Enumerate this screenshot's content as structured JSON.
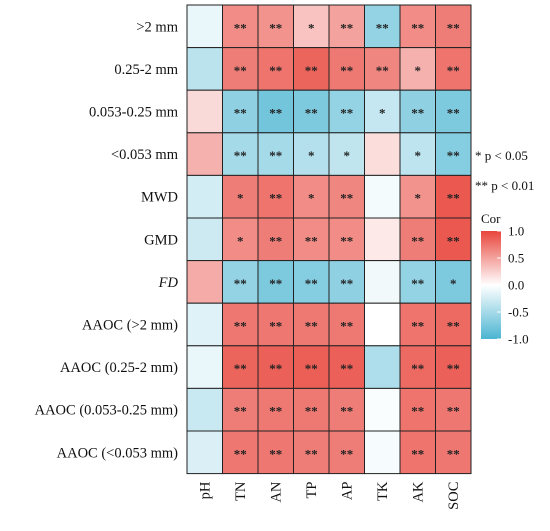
{
  "chart_data": {
    "type": "heatmap",
    "rows": [
      ">2 mm",
      "0.25-2 mm",
      "0.053-0.25 mm",
      "<0.053 mm",
      "MWD",
      "GMD",
      "FD",
      "AAOC (>2 mm)",
      "AAOC (0.25-2 mm)",
      "AAOC (0.053-0.25 mm)",
      "AAOC (<0.053 mm)"
    ],
    "row_italic": [
      false,
      false,
      false,
      false,
      false,
      false,
      true,
      false,
      false,
      false,
      false
    ],
    "columns": [
      "pH",
      "TN",
      "AN",
      "TP",
      "AP",
      "TK",
      "AK",
      "SOC"
    ],
    "values": [
      [
        -0.12,
        0.62,
        0.58,
        0.32,
        0.5,
        -0.6,
        0.62,
        0.7
      ],
      [
        -0.38,
        0.7,
        0.75,
        0.83,
        0.72,
        0.65,
        0.42,
        0.75
      ],
      [
        0.2,
        -0.62,
        -0.78,
        -0.72,
        -0.6,
        -0.32,
        -0.62,
        -0.72
      ],
      [
        0.42,
        -0.5,
        -0.5,
        -0.42,
        -0.35,
        0.18,
        -0.36,
        -0.68
      ],
      [
        -0.25,
        0.7,
        0.75,
        0.62,
        0.65,
        -0.06,
        0.58,
        0.9
      ],
      [
        -0.28,
        0.62,
        0.7,
        0.62,
        0.62,
        0.12,
        0.7,
        0.9
      ],
      [
        0.45,
        -0.6,
        -0.72,
        -0.68,
        -0.62,
        -0.08,
        -0.6,
        -0.72
      ],
      [
        -0.18,
        0.73,
        0.73,
        0.72,
        0.72,
        0.0,
        0.75,
        0.8
      ],
      [
        -0.12,
        0.83,
        0.85,
        0.86,
        0.85,
        -0.45,
        0.8,
        0.85
      ],
      [
        -0.3,
        0.7,
        0.72,
        0.72,
        0.7,
        -0.03,
        0.75,
        0.73
      ],
      [
        -0.2,
        0.73,
        0.73,
        0.7,
        0.7,
        -0.05,
        0.75,
        0.73
      ]
    ],
    "significance": [
      [
        "",
        "**",
        "**",
        "*",
        "**",
        "**",
        "**",
        "**"
      ],
      [
        "",
        "**",
        "**",
        "**",
        "**",
        "**",
        "*",
        "**"
      ],
      [
        "",
        "**",
        "**",
        "**",
        "**",
        "*",
        "**",
        "**"
      ],
      [
        "",
        "**",
        "**",
        "*",
        "*",
        "",
        "*",
        "**"
      ],
      [
        "",
        "*",
        "**",
        "*",
        "**",
        "",
        "*",
        "**"
      ],
      [
        "",
        "*",
        "**",
        "**",
        "**",
        "",
        "**",
        "**"
      ],
      [
        "",
        "**",
        "**",
        "**",
        "**",
        "",
        "**",
        "*"
      ],
      [
        "",
        "**",
        "**",
        "**",
        "**",
        "",
        "**",
        "**"
      ],
      [
        "",
        "**",
        "**",
        "**",
        "**",
        "",
        "**",
        "**"
      ],
      [
        "",
        "**",
        "**",
        "**",
        "**",
        "",
        "**",
        "**"
      ],
      [
        "",
        "**",
        "**",
        "**",
        "**",
        "",
        "**",
        "**"
      ]
    ],
    "color_range": [
      -1.0,
      1.0
    ],
    "colors": {
      "negative": "#4BB5D2",
      "zero": "#ffffff",
      "positive": "#E8453C"
    },
    "legend": {
      "title": "Cor",
      "ticks": [
        "1.0",
        "0.5",
        "0.0",
        "-0.5",
        "-1.0"
      ],
      "tick_values": [
        1.0,
        0.5,
        0.0,
        -0.5,
        -1.0
      ],
      "placement": "right"
    },
    "notes": [
      "* p < 0.05",
      "** p < 0.01"
    ]
  }
}
